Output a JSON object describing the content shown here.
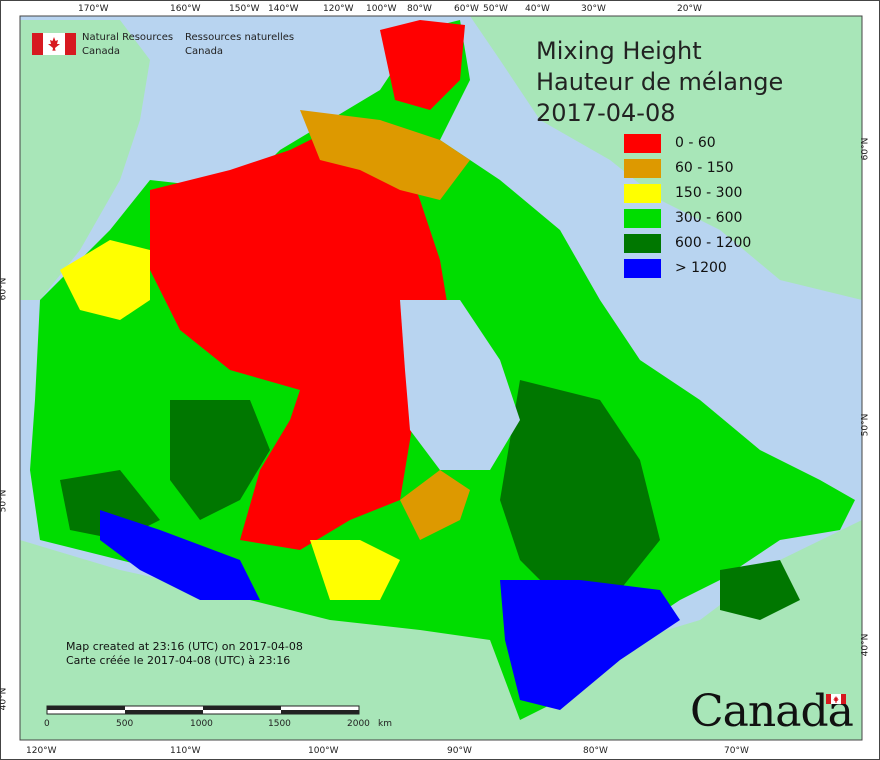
{
  "header": {
    "agency_en_line1": "Natural Resources",
    "agency_en_line2": "Canada",
    "agency_fr_line1": "Ressources naturelles",
    "agency_fr_line2": "Canada"
  },
  "title": {
    "line1": "Mixing Height",
    "line2": "Hauteur de mélange",
    "date": "2017-04-08"
  },
  "legend": {
    "items": [
      {
        "label": "0 - 60",
        "color": "#ff0000"
      },
      {
        "label": "60 - 150",
        "color": "#dd9900"
      },
      {
        "label": "150 - 300",
        "color": "#ffff00"
      },
      {
        "label": "300 - 600",
        "color": "#00dd00"
      },
      {
        "label": "600 - 1200",
        "color": "#007700"
      },
      {
        "label": "> 1200",
        "color": "#0000ff"
      }
    ]
  },
  "credit": {
    "line1": "Map created at 23:16 (UTC) on 2017-04-08",
    "line2": "Carte créée le 2017-04-08 (UTC) à 23:16"
  },
  "scale": {
    "labels": [
      "0",
      "500",
      "1000",
      "1500",
      "2000"
    ],
    "unit": "km"
  },
  "top_ticks": [
    "170°W",
    "160°W",
    "150°W",
    "140°W",
    "120°W",
    "100°W",
    "80°W",
    "60°W",
    "50°W",
    "40°W",
    "30°W",
    "20°W"
  ],
  "bottom_ticks": [
    "120°W",
    "110°W",
    "100°W",
    "90°W",
    "80°W",
    "70°W"
  ],
  "left_ticks": [
    "60°N",
    "50°N",
    "40°N"
  ],
  "right_ticks": [
    "60°N",
    "50°N",
    "40°N"
  ],
  "wordmark": "Canada",
  "colors": {
    "ocean": "#b8d4f0",
    "land_outside": "#a8e6b8"
  }
}
